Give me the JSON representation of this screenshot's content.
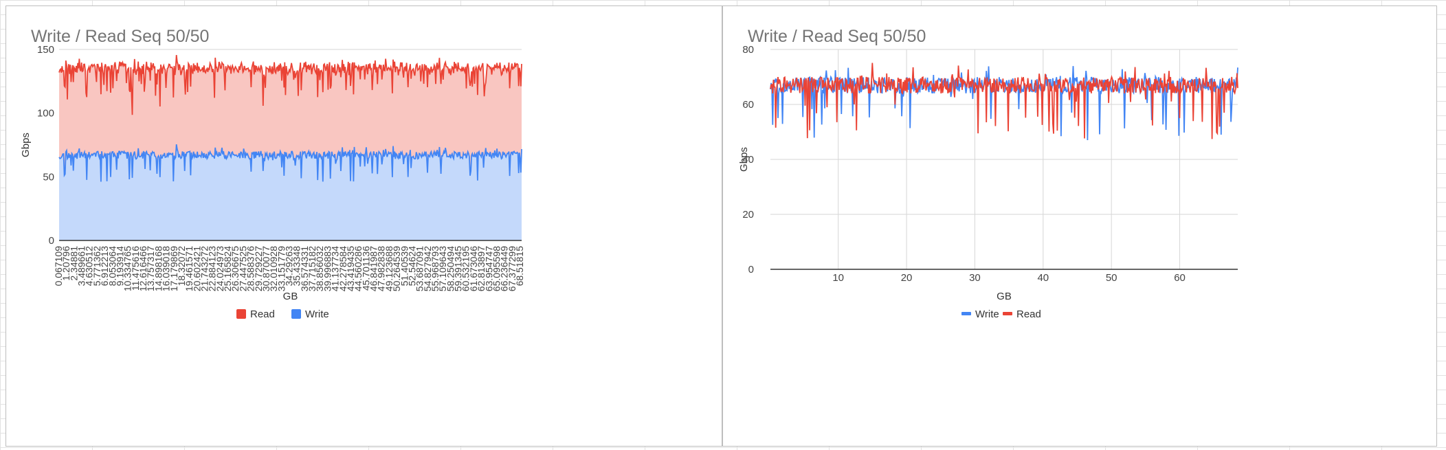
{
  "colors": {
    "read": "#ea4335",
    "write": "#4285f4",
    "read_fill": "#f9c6c1",
    "write_fill": "#c4d9fb",
    "grid": "#d6d6d6",
    "axis": "#333333"
  },
  "chart_data": [
    {
      "type": "area",
      "stacked": true,
      "title": "Write / Read Seq 50/50",
      "xlabel": "GB",
      "ylabel": "Gbps",
      "ylim": [
        0,
        150
      ],
      "yticks": [
        0,
        50,
        100,
        150
      ],
      "grid": true,
      "legend_position": "bottom",
      "x_tick_labels": [
        "0.067109",
        "1.20796",
        "2.34881",
        "3.489661",
        "4.630512",
        "5.771362",
        "6.912213",
        "8.053064",
        "9.193914",
        "10.334765",
        "11.475616",
        "12.616466",
        "13.757317",
        "14.898168",
        "16.039018",
        "17.179869",
        "18.32072",
        "19.461571",
        "20.602421",
        "21.743272",
        "22.884123",
        "24.024973",
        "25.165824",
        "26.306675",
        "27.447525",
        "28.588376",
        "29.729227",
        "30.870077",
        "32.010928",
        "33.151779",
        "34.29263",
        "35.43348",
        "36.574331",
        "37.715182",
        "38.856032",
        "39.996883",
        "41.137734",
        "42.278584",
        "43.419435",
        "44.560286",
        "45.701136",
        "46.841987",
        "47.982838",
        "49.123688",
        "50.264539",
        "51.40539",
        "52.54624",
        "53.687091",
        "54.827942",
        "55.968793",
        "57.109643",
        "58.250494",
        "59.391345",
        "60.532195",
        "61.673046",
        "62.813897",
        "63.954747",
        "65.095598",
        "66.236449",
        "67.377299",
        "68.51815"
      ],
      "x_range": [
        0.067109,
        68.51815
      ],
      "series": [
        {
          "name": "Read",
          "color": "#ea4335",
          "typical": 135,
          "band": 3,
          "dip_min": 92
        },
        {
          "name": "Write",
          "color": "#4285f4",
          "typical": 67,
          "band": 3,
          "dip_min": 46
        }
      ]
    },
    {
      "type": "line",
      "title": "Write / Read Seq 50/50",
      "xlabel": "GB",
      "ylabel": "Gbps",
      "ylim": [
        0,
        80
      ],
      "yticks": [
        0,
        20,
        40,
        60,
        80
      ],
      "xlim": [
        0.067,
        68.5
      ],
      "xticks": [
        10,
        20,
        30,
        40,
        50,
        60
      ],
      "grid": true,
      "legend_position": "bottom",
      "series": [
        {
          "name": "Write",
          "color": "#4285f4",
          "typical": 67,
          "band": 3,
          "dip_min": 46
        },
        {
          "name": "Read",
          "color": "#ea4335",
          "typical": 67,
          "band": 3,
          "dip_min": 47
        }
      ]
    }
  ]
}
